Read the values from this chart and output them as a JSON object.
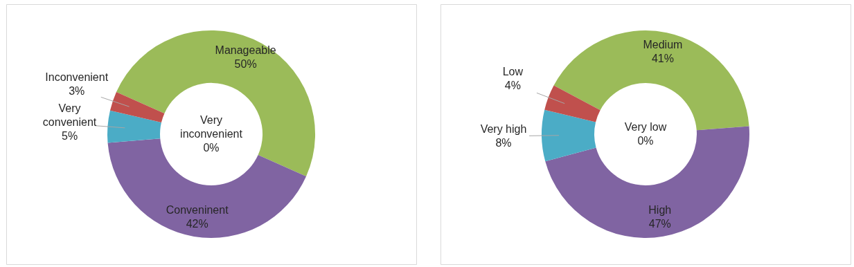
{
  "chart_data": [
    {
      "type": "donut",
      "categories": [
        "Very inconvenient",
        "Manageable",
        "Conveninent",
        "Very convenient",
        "Inconvenient"
      ],
      "values": [
        0,
        50,
        42,
        5,
        3
      ],
      "value_labels": [
        "0%",
        "50%",
        "42%",
        "5%",
        "3%"
      ],
      "colors": [
        "#4f81bd",
        "#9bbb59",
        "#8064a2",
        "#4bacc6",
        "#c0504d"
      ]
    },
    {
      "type": "donut",
      "categories": [
        "Very low",
        "Medium",
        "High",
        "Very high",
        "Low"
      ],
      "values": [
        0,
        41,
        47,
        8,
        4
      ],
      "value_labels": [
        "0%",
        "41%",
        "47%",
        "8%",
        "4%"
      ],
      "colors": [
        "#4f81bd",
        "#9bbb59",
        "#8064a2",
        "#4bacc6",
        "#c0504d"
      ]
    }
  ]
}
